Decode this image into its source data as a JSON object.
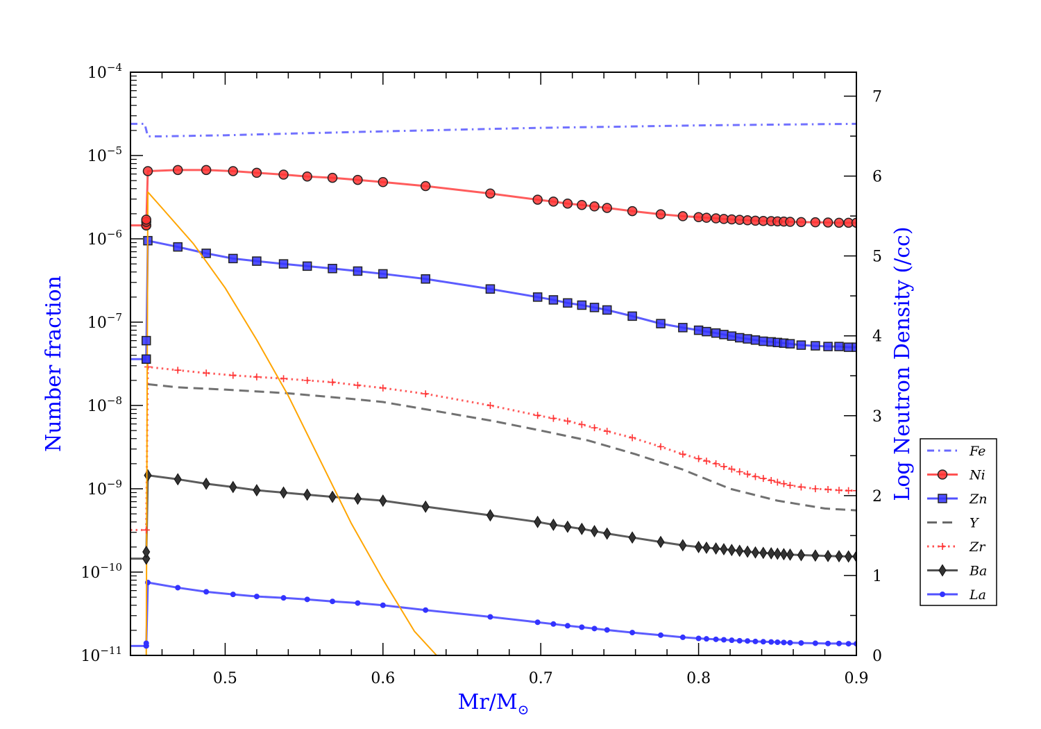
{
  "chart_data": {
    "type": "line",
    "xlabel": "Mr/M",
    "xlabel_symbol": "⊙",
    "ylabel_left": "Number fraction",
    "ylabel_right": "Log Neutron Density (/cc)",
    "label_color": "#0000ff",
    "xlim": [
      0.44,
      0.9
    ],
    "ylim_left": [
      1e-11,
      0.0001
    ],
    "yscale_left": "log",
    "ylim_right": [
      0,
      7.3
    ],
    "x_ticks": [
      "0.5",
      "0.6",
      "0.7",
      "0.8",
      "0.9"
    ],
    "y_left_ticks": [
      {
        "base": "10",
        "exp": "−4"
      },
      {
        "base": "10",
        "exp": "−5"
      },
      {
        "base": "10",
        "exp": "−6"
      },
      {
        "base": "10",
        "exp": "−7"
      },
      {
        "base": "10",
        "exp": "−8"
      },
      {
        "base": "10",
        "exp": "−9"
      },
      {
        "base": "10",
        "exp": "−10"
      },
      {
        "base": "10",
        "exp": "−11"
      }
    ],
    "y_right_ticks": [
      "0",
      "1",
      "2",
      "3",
      "4",
      "5",
      "6",
      "7"
    ],
    "legend_position": "right, outside plot area",
    "grid": false,
    "series": [
      {
        "name": "Fe",
        "color": "#4d4dff",
        "style": "dashdot",
        "marker": "none",
        "axis": "left",
        "points": [
          [
            0.44,
            2.4e-05
          ],
          [
            0.449,
            2.4e-05
          ],
          [
            0.451,
            1.7e-05
          ],
          [
            0.46,
            1.7e-05
          ],
          [
            0.5,
            1.75e-05
          ],
          [
            0.55,
            1.85e-05
          ],
          [
            0.6,
            1.95e-05
          ],
          [
            0.65,
            2.05e-05
          ],
          [
            0.7,
            2.15e-05
          ],
          [
            0.75,
            2.22e-05
          ],
          [
            0.8,
            2.3e-05
          ],
          [
            0.85,
            2.35e-05
          ],
          [
            0.9,
            2.4e-05
          ]
        ]
      },
      {
        "name": "Ni",
        "color": "#ff3333",
        "style": "solid",
        "marker": "circle",
        "axis": "left",
        "points": [
          [
            0.44,
            1.45e-06
          ],
          [
            0.45,
            1.45e-06
          ],
          [
            0.451,
            6.5e-06
          ],
          [
            0.47,
            6.7e-06
          ],
          [
            0.488,
            6.7e-06
          ],
          [
            0.505,
            6.5e-06
          ],
          [
            0.52,
            6.2e-06
          ],
          [
            0.537,
            5.9e-06
          ],
          [
            0.552,
            5.6e-06
          ],
          [
            0.568,
            5.4e-06
          ],
          [
            0.584,
            5.1e-06
          ],
          [
            0.6,
            4.8e-06
          ],
          [
            0.627,
            4.3e-06
          ],
          [
            0.668,
            3.5e-06
          ],
          [
            0.698,
            2.95e-06
          ],
          [
            0.708,
            2.8e-06
          ],
          [
            0.717,
            2.65e-06
          ],
          [
            0.726,
            2.55e-06
          ],
          [
            0.734,
            2.45e-06
          ],
          [
            0.742,
            2.35e-06
          ],
          [
            0.758,
            2.15e-06
          ],
          [
            0.776,
            1.97e-06
          ],
          [
            0.79,
            1.87e-06
          ],
          [
            0.8,
            1.82e-06
          ],
          [
            0.805,
            1.79e-06
          ],
          [
            0.811,
            1.76e-06
          ],
          [
            0.816,
            1.73e-06
          ],
          [
            0.821,
            1.71e-06
          ],
          [
            0.826,
            1.69e-06
          ],
          [
            0.831,
            1.67e-06
          ],
          [
            0.836,
            1.65e-06
          ],
          [
            0.841,
            1.64e-06
          ],
          [
            0.846,
            1.63e-06
          ],
          [
            0.85,
            1.62e-06
          ],
          [
            0.854,
            1.61e-06
          ],
          [
            0.858,
            1.6e-06
          ],
          [
            0.865,
            1.59e-06
          ],
          [
            0.874,
            1.58e-06
          ],
          [
            0.882,
            1.57e-06
          ],
          [
            0.889,
            1.56e-06
          ],
          [
            0.895,
            1.56e-06
          ],
          [
            0.9,
            1.56e-06
          ]
        ]
      },
      {
        "name": "Zn",
        "color": "#3333ff",
        "style": "solid",
        "marker": "square",
        "axis": "left",
        "points": [
          [
            0.44,
            3.6e-08
          ],
          [
            0.45,
            3.6e-08
          ],
          [
            0.451,
            9.5e-07
          ],
          [
            0.47,
            8e-07
          ],
          [
            0.488,
            6.7e-07
          ],
          [
            0.505,
            5.8e-07
          ],
          [
            0.52,
            5.4e-07
          ],
          [
            0.537,
            5e-07
          ],
          [
            0.552,
            4.7e-07
          ],
          [
            0.568,
            4.4e-07
          ],
          [
            0.584,
            4.1e-07
          ],
          [
            0.6,
            3.8e-07
          ],
          [
            0.627,
            3.3e-07
          ],
          [
            0.668,
            2.5e-07
          ],
          [
            0.698,
            2e-07
          ],
          [
            0.708,
            1.85e-07
          ],
          [
            0.717,
            1.7e-07
          ],
          [
            0.726,
            1.6e-07
          ],
          [
            0.734,
            1.5e-07
          ],
          [
            0.742,
            1.4e-07
          ],
          [
            0.758,
            1.18e-07
          ],
          [
            0.776,
            9.6e-08
          ],
          [
            0.79,
            8.6e-08
          ],
          [
            0.8,
            8e-08
          ],
          [
            0.805,
            7.7e-08
          ],
          [
            0.811,
            7.4e-08
          ],
          [
            0.816,
            7.1e-08
          ],
          [
            0.821,
            6.8e-08
          ],
          [
            0.826,
            6.5e-08
          ],
          [
            0.831,
            6.3e-08
          ],
          [
            0.836,
            6.1e-08
          ],
          [
            0.841,
            5.9e-08
          ],
          [
            0.846,
            5.8e-08
          ],
          [
            0.85,
            5.7e-08
          ],
          [
            0.854,
            5.6e-08
          ],
          [
            0.858,
            5.5e-08
          ],
          [
            0.865,
            5.3e-08
          ],
          [
            0.874,
            5.2e-08
          ],
          [
            0.882,
            5.1e-08
          ],
          [
            0.889,
            5.1e-08
          ],
          [
            0.895,
            5e-08
          ],
          [
            0.9,
            5e-08
          ]
        ]
      },
      {
        "name": "Y",
        "color": "#4d4d4d",
        "style": "dashed",
        "marker": "none",
        "axis": "left",
        "points": [
          [
            0.451,
            1.8e-08
          ],
          [
            0.47,
            1.65e-08
          ],
          [
            0.5,
            1.55e-08
          ],
          [
            0.54,
            1.4e-08
          ],
          [
            0.58,
            1.2e-08
          ],
          [
            0.6,
            1.1e-08
          ],
          [
            0.63,
            8.8e-09
          ],
          [
            0.67,
            6.5e-09
          ],
          [
            0.7,
            5e-09
          ],
          [
            0.73,
            3.8e-09
          ],
          [
            0.76,
            2.6e-09
          ],
          [
            0.79,
            1.7e-09
          ],
          [
            0.82,
            1e-09
          ],
          [
            0.85,
            7.2e-10
          ],
          [
            0.88,
            5.8e-10
          ],
          [
            0.9,
            5.5e-10
          ]
        ]
      },
      {
        "name": "Zr",
        "color": "#ff3333",
        "style": "dotted",
        "marker": "plus",
        "axis": "left",
        "points": [
          [
            0.44,
            3.2e-10
          ],
          [
            0.45,
            3.2e-10
          ],
          [
            0.451,
            2.9e-08
          ],
          [
            0.47,
            2.65e-08
          ],
          [
            0.488,
            2.45e-08
          ],
          [
            0.505,
            2.3e-08
          ],
          [
            0.52,
            2.2e-08
          ],
          [
            0.537,
            2.1e-08
          ],
          [
            0.552,
            2e-08
          ],
          [
            0.568,
            1.9e-08
          ],
          [
            0.584,
            1.75e-08
          ],
          [
            0.6,
            1.62e-08
          ],
          [
            0.627,
            1.38e-08
          ],
          [
            0.668,
            1e-08
          ],
          [
            0.698,
            7.6e-09
          ],
          [
            0.708,
            7e-09
          ],
          [
            0.717,
            6.5e-09
          ],
          [
            0.726,
            5.9e-09
          ],
          [
            0.734,
            5.4e-09
          ],
          [
            0.742,
            4.9e-09
          ],
          [
            0.758,
            4.1e-09
          ],
          [
            0.776,
            3.2e-09
          ],
          [
            0.79,
            2.6e-09
          ],
          [
            0.8,
            2.3e-09
          ],
          [
            0.805,
            2.15e-09
          ],
          [
            0.811,
            2e-09
          ],
          [
            0.816,
            1.85e-09
          ],
          [
            0.821,
            1.72e-09
          ],
          [
            0.826,
            1.6e-09
          ],
          [
            0.831,
            1.5e-09
          ],
          [
            0.836,
            1.4e-09
          ],
          [
            0.841,
            1.33e-09
          ],
          [
            0.846,
            1.26e-09
          ],
          [
            0.85,
            1.2e-09
          ],
          [
            0.854,
            1.15e-09
          ],
          [
            0.858,
            1.1e-09
          ],
          [
            0.865,
            1.05e-09
          ],
          [
            0.874,
            1e-09
          ],
          [
            0.882,
            9.8e-10
          ],
          [
            0.889,
            9.6e-10
          ],
          [
            0.895,
            9.5e-10
          ],
          [
            0.9,
            9.5e-10
          ]
        ]
      },
      {
        "name": "Ba",
        "color": "#333333",
        "style": "solid",
        "marker": "diamond",
        "axis": "left",
        "points": [
          [
            0.44,
            1.45e-10
          ],
          [
            0.45,
            1.45e-10
          ],
          [
            0.451,
            1.45e-09
          ],
          [
            0.47,
            1.3e-09
          ],
          [
            0.488,
            1.15e-09
          ],
          [
            0.505,
            1.05e-09
          ],
          [
            0.52,
            9.6e-10
          ],
          [
            0.537,
            9e-10
          ],
          [
            0.552,
            8.5e-10
          ],
          [
            0.568,
            8e-10
          ],
          [
            0.584,
            7.6e-10
          ],
          [
            0.6,
            7.2e-10
          ],
          [
            0.627,
            6.1e-10
          ],
          [
            0.668,
            4.8e-10
          ],
          [
            0.698,
            4e-10
          ],
          [
            0.708,
            3.7e-10
          ],
          [
            0.717,
            3.5e-10
          ],
          [
            0.726,
            3.3e-10
          ],
          [
            0.734,
            3.1e-10
          ],
          [
            0.742,
            2.9e-10
          ],
          [
            0.758,
            2.6e-10
          ],
          [
            0.776,
            2.3e-10
          ],
          [
            0.79,
            2.1e-10
          ],
          [
            0.8,
            2e-10
          ],
          [
            0.805,
            1.96e-10
          ],
          [
            0.811,
            1.92e-10
          ],
          [
            0.816,
            1.88e-10
          ],
          [
            0.821,
            1.84e-10
          ],
          [
            0.826,
            1.8e-10
          ],
          [
            0.831,
            1.76e-10
          ],
          [
            0.836,
            1.72e-10
          ],
          [
            0.841,
            1.7e-10
          ],
          [
            0.846,
            1.68e-10
          ],
          [
            0.85,
            1.66e-10
          ],
          [
            0.854,
            1.64e-10
          ],
          [
            0.858,
            1.62e-10
          ],
          [
            0.865,
            1.6e-10
          ],
          [
            0.874,
            1.58e-10
          ],
          [
            0.882,
            1.56e-10
          ],
          [
            0.889,
            1.55e-10
          ],
          [
            0.895,
            1.54e-10
          ],
          [
            0.9,
            1.54e-10
          ]
        ]
      },
      {
        "name": "La",
        "color": "#3333ff",
        "style": "solid",
        "marker": "dot",
        "axis": "left",
        "points": [
          [
            0.44,
            1.3e-11
          ],
          [
            0.45,
            1.3e-11
          ],
          [
            0.451,
            7.5e-11
          ],
          [
            0.47,
            6.5e-11
          ],
          [
            0.488,
            5.8e-11
          ],
          [
            0.505,
            5.4e-11
          ],
          [
            0.52,
            5.1e-11
          ],
          [
            0.537,
            4.9e-11
          ],
          [
            0.552,
            4.7e-11
          ],
          [
            0.568,
            4.45e-11
          ],
          [
            0.584,
            4.25e-11
          ],
          [
            0.6,
            4e-11
          ],
          [
            0.627,
            3.5e-11
          ],
          [
            0.668,
            2.9e-11
          ],
          [
            0.698,
            2.5e-11
          ],
          [
            0.708,
            2.38e-11
          ],
          [
            0.717,
            2.27e-11
          ],
          [
            0.726,
            2.18e-11
          ],
          [
            0.734,
            2.1e-11
          ],
          [
            0.742,
            2.02e-11
          ],
          [
            0.758,
            1.88e-11
          ],
          [
            0.776,
            1.75e-11
          ],
          [
            0.79,
            1.65e-11
          ],
          [
            0.8,
            1.6e-11
          ],
          [
            0.805,
            1.58e-11
          ],
          [
            0.811,
            1.56e-11
          ],
          [
            0.816,
            1.54e-11
          ],
          [
            0.821,
            1.52e-11
          ],
          [
            0.826,
            1.5e-11
          ],
          [
            0.831,
            1.49e-11
          ],
          [
            0.836,
            1.47e-11
          ],
          [
            0.841,
            1.46e-11
          ],
          [
            0.846,
            1.45e-11
          ],
          [
            0.85,
            1.44e-11
          ],
          [
            0.854,
            1.43e-11
          ],
          [
            0.858,
            1.42e-11
          ],
          [
            0.865,
            1.41e-11
          ],
          [
            0.874,
            1.4e-11
          ],
          [
            0.882,
            1.39e-11
          ],
          [
            0.889,
            1.39e-11
          ],
          [
            0.895,
            1.38e-11
          ],
          [
            0.9,
            1.38e-11
          ]
        ]
      },
      {
        "color": "#ffa500",
        "style": "solid",
        "marker": "none",
        "axis": "right",
        "legend": false,
        "points": [
          [
            0.45,
            0.0
          ],
          [
            0.4505,
            3.0
          ],
          [
            0.451,
            5.8
          ],
          [
            0.46,
            5.6
          ],
          [
            0.48,
            5.15
          ],
          [
            0.5,
            4.6
          ],
          [
            0.52,
            3.95
          ],
          [
            0.54,
            3.25
          ],
          [
            0.56,
            2.45
          ],
          [
            0.58,
            1.65
          ],
          [
            0.6,
            0.95
          ],
          [
            0.62,
            0.3
          ],
          [
            0.634,
            0.0
          ]
        ]
      }
    ],
    "extra_markers": [
      {
        "series": "Ni",
        "marker": "circle",
        "points": [
          [
            0.45,
            1.45e-06
          ],
          [
            0.45,
            1.6e-06
          ],
          [
            0.45,
            1.7e-06
          ]
        ]
      },
      {
        "series": "Zn",
        "marker": "square",
        "points": [
          [
            0.45,
            3.6e-08
          ],
          [
            0.45,
            6e-08
          ]
        ]
      },
      {
        "series": "Ba",
        "marker": "diamond",
        "points": [
          [
            0.45,
            1.45e-10
          ],
          [
            0.45,
            1.75e-10
          ]
        ]
      },
      {
        "series": "La",
        "marker": "dot",
        "points": [
          [
            0.45,
            1.3e-11
          ],
          [
            0.45,
            1.4e-11
          ]
        ]
      },
      {
        "series": "Zr",
        "marker": "plus",
        "points": [
          [
            0.45,
            3.2e-10
          ]
        ]
      }
    ]
  }
}
